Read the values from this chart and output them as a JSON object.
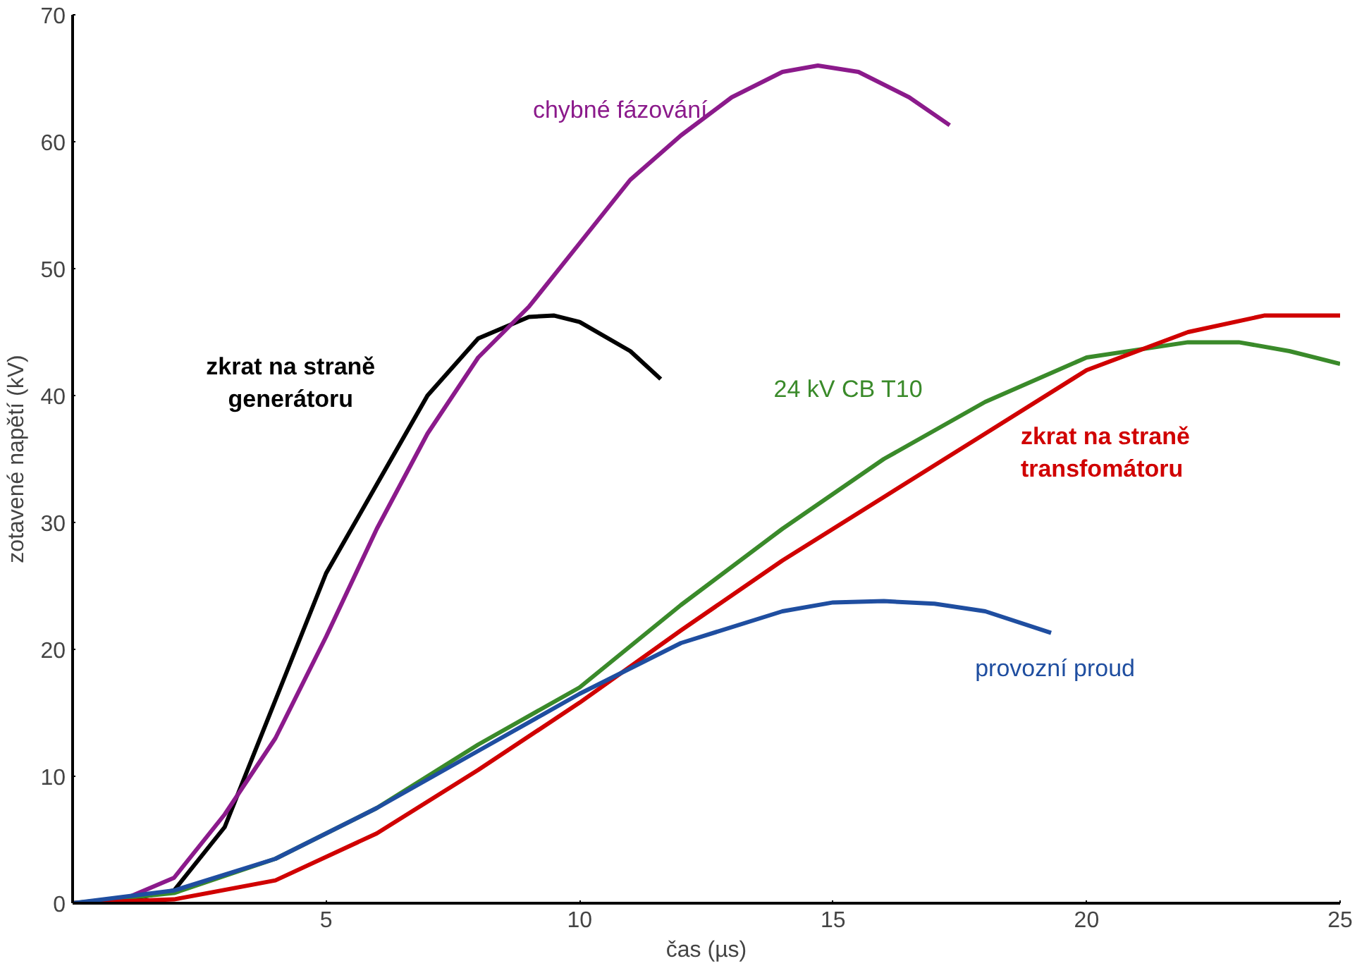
{
  "chart_data": {
    "type": "line",
    "xlabel": "čas (µs)",
    "ylabel": "zotavené napětí (kV)",
    "xlim": [
      0,
      25
    ],
    "ylim": [
      0,
      70
    ],
    "xticks": [
      5,
      10,
      15,
      20,
      25
    ],
    "yticks": [
      0,
      10,
      20,
      30,
      40,
      50,
      60,
      70
    ],
    "grid": false,
    "legend": false,
    "marker": "none",
    "line_style": "solid",
    "series": [
      {
        "name": "zkrat na straně\ngenerátoru",
        "color": "#000000",
        "x": [
          0,
          1,
          2,
          3,
          4,
          5,
          6,
          7,
          8,
          9,
          9.5,
          10,
          11,
          11.6
        ],
        "values": [
          0,
          0.2,
          1,
          6,
          16,
          26,
          33,
          40,
          44.5,
          46.2,
          46.3,
          45.8,
          43.5,
          41.3
        ]
      },
      {
        "name": "chybné fázování",
        "color": "#8b1a8b",
        "x": [
          0,
          1,
          2,
          3,
          4,
          5,
          6,
          7,
          8,
          9,
          10,
          11,
          12,
          13,
          14,
          14.7,
          15.5,
          16.5,
          17.3
        ],
        "values": [
          0,
          0.3,
          2,
          7,
          13,
          21,
          29.5,
          37,
          43,
          47,
          52,
          57,
          60.5,
          63.5,
          65.5,
          66,
          65.5,
          63.5,
          61.3
        ]
      },
      {
        "name": "24 kV CB T10",
        "color": "#3a8a2a",
        "x": [
          0,
          2,
          4,
          6,
          8,
          10,
          12,
          14,
          16,
          18,
          20,
          22,
          23,
          24,
          25
        ],
        "values": [
          0,
          0.8,
          3.5,
          7.5,
          12.5,
          17,
          23.5,
          29.5,
          35,
          39.5,
          43,
          44.2,
          44.2,
          43.5,
          42.5
        ]
      },
      {
        "name": "zkrat na straně\ntransfomátoru",
        "color": "#d00000",
        "x": [
          0,
          2,
          4,
          6,
          8,
          10,
          12,
          14,
          16,
          18,
          20,
          22,
          23.5,
          25
        ],
        "values": [
          0,
          0.3,
          1.8,
          5.5,
          10.5,
          15.8,
          21.5,
          27,
          32,
          37,
          42,
          45,
          46.3,
          46.3
        ]
      },
      {
        "name": "provozní proud",
        "color": "#1f4ea0",
        "x": [
          0,
          2,
          4,
          6,
          8,
          10,
          12,
          14,
          15,
          16,
          17,
          18,
          19.3
        ],
        "values": [
          0,
          1,
          3.5,
          7.5,
          12,
          16.5,
          20.5,
          23,
          23.7,
          23.8,
          23.6,
          23,
          21.3
        ]
      }
    ]
  }
}
